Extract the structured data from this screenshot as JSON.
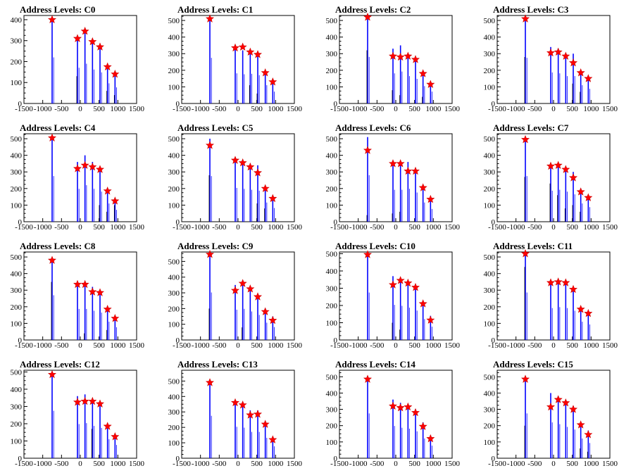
{
  "chart_data": [
    {
      "type": "bar",
      "title": "Address Levels: C0",
      "xlim": [
        -1500,
        1500
      ],
      "ylim": [
        0,
        420
      ],
      "xticks": [
        "-1500",
        "-1000",
        "-500",
        "0",
        "500",
        "1000",
        "1500"
      ],
      "yticks": [
        0,
        100,
        200,
        300,
        400
      ],
      "x": [
        -750,
        -75,
        125,
        325,
        525,
        725,
        925
      ],
      "peak_values": [
        400,
        310,
        345,
        295,
        270,
        175,
        140
      ],
      "marker_values": [
        400,
        310,
        345,
        295,
        270,
        175,
        140
      ],
      "sub_values": [
        0,
        130,
        0,
        0,
        0,
        60,
        40
      ]
    },
    {
      "type": "bar",
      "title": "Address Levels: C1",
      "xlim": [
        -1500,
        1500
      ],
      "ylim": [
        0,
        530
      ],
      "xticks": [
        "-1500",
        "-1000",
        "-500",
        "0",
        "500",
        "1000",
        "1500"
      ],
      "yticks": [
        0,
        100,
        200,
        300,
        400,
        500
      ],
      "x": [
        -750,
        -75,
        125,
        325,
        525,
        725,
        925
      ],
      "peak_values": [
        500,
        330,
        320,
        325,
        310,
        200,
        130
      ],
      "marker_values": [
        510,
        335,
        340,
        310,
        295,
        185,
        130
      ],
      "sub_values": [
        0,
        0,
        0,
        110,
        60,
        0,
        0
      ]
    },
    {
      "type": "bar",
      "title": "Address Levels: C2",
      "xlim": [
        -1500,
        1500
      ],
      "ylim": [
        0,
        530
      ],
      "xticks": [
        "-1500",
        "-1000",
        "-500",
        "0",
        "500",
        "1000",
        "1500"
      ],
      "yticks": [
        0,
        100,
        200,
        300,
        400,
        500
      ],
      "x": [
        -750,
        -75,
        125,
        325,
        525,
        725,
        925
      ],
      "peak_values": [
        510,
        330,
        350,
        300,
        270,
        190,
        130
      ],
      "marker_values": [
        520,
        285,
        280,
        285,
        265,
        180,
        115
      ],
      "sub_values": [
        320,
        80,
        50,
        0,
        0,
        40,
        0
      ]
    },
    {
      "type": "bar",
      "title": "Address Levels: C3",
      "xlim": [
        -1500,
        1500
      ],
      "ylim": [
        0,
        530
      ],
      "xticks": [
        "-1500",
        "-1000",
        "-500",
        "0",
        "500",
        "1000",
        "1500"
      ],
      "yticks": [
        0,
        100,
        200,
        300,
        400,
        500
      ],
      "x": [
        -750,
        -75,
        125,
        325,
        525,
        725,
        925
      ],
      "peak_values": [
        500,
        340,
        330,
        300,
        300,
        200,
        160
      ],
      "marker_values": [
        510,
        305,
        310,
        285,
        245,
        185,
        150
      ],
      "sub_values": [
        280,
        0,
        0,
        0,
        120,
        70,
        0
      ]
    },
    {
      "type": "bar",
      "title": "Address Levels: C4",
      "xlim": [
        -1500,
        1500
      ],
      "ylim": [
        0,
        530
      ],
      "xticks": [
        "-1500",
        "-1000",
        "-500",
        "0",
        "500",
        "1000",
        "1500"
      ],
      "yticks": [
        0,
        100,
        200,
        300,
        400,
        500
      ],
      "x": [
        -750,
        -75,
        125,
        325,
        525,
        725,
        925
      ],
      "peak_values": [
        500,
        360,
        400,
        360,
        330,
        200,
        130
      ],
      "marker_values": [
        505,
        320,
        340,
        330,
        315,
        185,
        125
      ],
      "sub_values": [
        0,
        0,
        0,
        0,
        100,
        60,
        100
      ]
    },
    {
      "type": "bar",
      "title": "Address Levels: C5",
      "xlim": [
        -1500,
        1500
      ],
      "ylim": [
        0,
        530
      ],
      "xticks": [
        "-1500",
        "-1000",
        "-500",
        "0",
        "500",
        "1000",
        "1500"
      ],
      "yticks": [
        0,
        100,
        200,
        300,
        400,
        500
      ],
      "x": [
        -750,
        -75,
        125,
        325,
        525,
        725,
        925
      ],
      "peak_values": [
        500,
        370,
        360,
        350,
        340,
        210,
        150
      ],
      "marker_values": [
        460,
        370,
        355,
        330,
        295,
        200,
        140
      ],
      "sub_values": [
        280,
        0,
        0,
        0,
        110,
        80,
        0
      ]
    },
    {
      "type": "bar",
      "title": "Address Levels: C6",
      "xlim": [
        -1500,
        1500
      ],
      "ylim": [
        0,
        530
      ],
      "xticks": [
        "-1500",
        "-1000",
        "-500",
        "0",
        "500",
        "1000",
        "1500"
      ],
      "yticks": [
        0,
        100,
        200,
        300,
        400,
        500
      ],
      "x": [
        -750,
        -75,
        125,
        325,
        525,
        725,
        925
      ],
      "peak_values": [
        510,
        350,
        350,
        360,
        320,
        210,
        140
      ],
      "marker_values": [
        430,
        350,
        350,
        305,
        305,
        205,
        135
      ],
      "sub_values": [
        40,
        50,
        60,
        0,
        0,
        0,
        0
      ]
    },
    {
      "type": "bar",
      "title": "Address Levels: C7",
      "xlim": [
        -1500,
        1500
      ],
      "ylim": [
        0,
        530
      ],
      "xticks": [
        "-1500",
        "-1000",
        "-500",
        "0",
        "500",
        "1000",
        "1500"
      ],
      "yticks": [
        0,
        100,
        200,
        300,
        400,
        500
      ],
      "x": [
        -750,
        -75,
        125,
        325,
        525,
        725,
        925
      ],
      "peak_values": [
        500,
        340,
        350,
        330,
        300,
        200,
        160
      ],
      "marker_values": [
        495,
        335,
        340,
        315,
        265,
        180,
        145
      ],
      "sub_values": [
        270,
        230,
        160,
        80,
        100,
        60,
        0
      ]
    },
    {
      "type": "bar",
      "title": "Address Levels: C8",
      "xlim": [
        -1500,
        1500
      ],
      "ylim": [
        0,
        530
      ],
      "xticks": [
        "-1500",
        "-1000",
        "-500",
        "0",
        "500",
        "1000",
        "1500"
      ],
      "yticks": [
        0,
        100,
        200,
        300,
        400,
        500
      ],
      "x": [
        -750,
        -75,
        125,
        325,
        525,
        725,
        925
      ],
      "peak_values": [
        490,
        340,
        340,
        320,
        300,
        200,
        140
      ],
      "marker_values": [
        480,
        335,
        335,
        290,
        285,
        185,
        130
      ],
      "sub_values": [
        350,
        0,
        40,
        0,
        0,
        60,
        0
      ]
    },
    {
      "type": "bar",
      "title": "Address Levels: C9",
      "xlim": [
        -1500,
        1500
      ],
      "ylim": [
        0,
        560
      ],
      "xticks": [
        "-1500",
        "-1000",
        "-500",
        "0",
        "500",
        "1000",
        "1500"
      ],
      "yticks": [
        0,
        100,
        200,
        300,
        400,
        500
      ],
      "x": [
        -750,
        -75,
        125,
        325,
        525,
        725,
        925
      ],
      "peak_values": [
        550,
        350,
        360,
        330,
        290,
        200,
        150
      ],
      "marker_values": [
        545,
        315,
        360,
        325,
        275,
        180,
        125
      ],
      "sub_values": [
        200,
        0,
        80,
        0,
        0,
        0,
        0
      ]
    },
    {
      "type": "bar",
      "title": "Address Levels: C10",
      "xlim": [
        -1500,
        1500
      ],
      "ylim": [
        0,
        510
      ],
      "xticks": [
        "-1500",
        "-1000",
        "-500",
        "0",
        "500",
        "1000",
        "1500"
      ],
      "yticks": [
        0,
        100,
        200,
        300,
        400,
        500
      ],
      "x": [
        -750,
        -75,
        125,
        325,
        525,
        725,
        925
      ],
      "peak_values": [
        500,
        370,
        360,
        340,
        310,
        220,
        140
      ],
      "marker_values": [
        495,
        320,
        345,
        330,
        305,
        210,
        115
      ],
      "sub_values": [
        0,
        100,
        60,
        0,
        0,
        0,
        0
      ]
    },
    {
      "type": "bar",
      "title": "Address Levels: C11",
      "xlim": [
        -1500,
        1500
      ],
      "ylim": [
        0,
        530
      ],
      "xticks": [
        "-1500",
        "-1000",
        "-500",
        "0",
        "500",
        "1000",
        "1500"
      ],
      "yticks": [
        0,
        100,
        200,
        300,
        400,
        500
      ],
      "x": [
        -750,
        -75,
        125,
        325,
        525,
        725,
        925
      ],
      "peak_values": [
        520,
        350,
        360,
        350,
        320,
        200,
        170
      ],
      "marker_values": [
        520,
        345,
        350,
        345,
        305,
        185,
        160
      ],
      "sub_values": [
        440,
        0,
        0,
        0,
        0,
        0,
        0
      ]
    },
    {
      "type": "bar",
      "title": "Address Levels: C12",
      "xlim": [
        -1500,
        1500
      ],
      "ylim": [
        0,
        510
      ],
      "xticks": [
        "-1500",
        "-1000",
        "-500",
        "0",
        "500",
        "1000",
        "1500"
      ],
      "yticks": [
        0,
        100,
        200,
        300,
        400,
        500
      ],
      "x": [
        -750,
        -75,
        125,
        325,
        525,
        725,
        925
      ],
      "peak_values": [
        500,
        360,
        370,
        340,
        320,
        200,
        140
      ],
      "marker_values": [
        485,
        325,
        330,
        330,
        315,
        185,
        125
      ],
      "sub_values": [
        0,
        0,
        0,
        170,
        0,
        0,
        0
      ]
    },
    {
      "type": "bar",
      "title": "Address Levels: C13",
      "xlim": [
        -1500,
        1500
      ],
      "ylim": [
        0,
        570
      ],
      "xticks": [
        "-1500",
        "-1000",
        "-500",
        "0",
        "500",
        "1000",
        "1500"
      ],
      "yticks": [
        0,
        100,
        200,
        300,
        400,
        500
      ],
      "x": [
        -750,
        -75,
        125,
        325,
        525,
        725,
        925
      ],
      "peak_values": [
        500,
        370,
        360,
        310,
        310,
        240,
        140
      ],
      "marker_values": [
        490,
        360,
        345,
        280,
        285,
        220,
        120
      ],
      "sub_values": [
        0,
        0,
        0,
        0,
        0,
        0,
        0
      ]
    },
    {
      "type": "bar",
      "title": "Address Levels: C14",
      "xlim": [
        -1500,
        1500
      ],
      "ylim": [
        0,
        540
      ],
      "xticks": [
        "-1500",
        "-1000",
        "-500",
        "0",
        "500",
        "1000",
        "1500"
      ],
      "yticks": [
        0,
        100,
        200,
        300,
        400,
        500
      ],
      "x": [
        -750,
        -75,
        125,
        325,
        525,
        725,
        925
      ],
      "peak_values": [
        500,
        360,
        340,
        330,
        300,
        220,
        140
      ],
      "marker_values": [
        485,
        320,
        310,
        315,
        280,
        195,
        120
      ],
      "sub_values": [
        0,
        0,
        0,
        0,
        0,
        0,
        0
      ]
    },
    {
      "type": "bar",
      "title": "Address Levels: C15",
      "xlim": [
        -1500,
        1500
      ],
      "ylim": [
        0,
        540
      ],
      "xticks": [
        "-1500",
        "-1000",
        "-500",
        "0",
        "500",
        "1000",
        "1500"
      ],
      "yticks": [
        0,
        100,
        200,
        300,
        400,
        500
      ],
      "x": [
        -750,
        -75,
        125,
        325,
        525,
        725,
        925
      ],
      "peak_values": [
        500,
        400,
        380,
        350,
        320,
        220,
        170
      ],
      "marker_values": [
        485,
        315,
        360,
        340,
        300,
        205,
        145
      ],
      "sub_values": [
        200,
        0,
        0,
        0,
        0,
        60,
        40
      ]
    }
  ]
}
